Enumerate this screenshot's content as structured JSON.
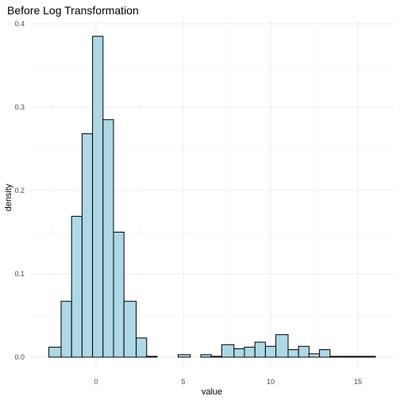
{
  "chart_data": {
    "type": "bar",
    "title": "Before Log Transformation",
    "xlabel": "value",
    "ylabel": "density",
    "xlim": [
      -3.0,
      16.3
    ],
    "ylim": [
      0,
      0.4
    ],
    "x_ticks": [
      0,
      5,
      10,
      15
    ],
    "y_ticks": [
      0.0,
      0.1,
      0.2,
      0.3,
      0.4
    ],
    "y_tick_labels": [
      "0.0",
      "0.1",
      "0.2",
      "0.3",
      "0.4"
    ],
    "grid": true,
    "bar_fill": "#add8e6",
    "bar_outline": "#000000",
    "bins": [
      {
        "x0": -2.7,
        "x1": -2.0,
        "density": 0.012
      },
      {
        "x0": -2.0,
        "x1": -1.4,
        "density": 0.067
      },
      {
        "x0": -1.4,
        "x1": -0.8,
        "density": 0.169
      },
      {
        "x0": -0.8,
        "x1": -0.2,
        "density": 0.268
      },
      {
        "x0": -0.2,
        "x1": 0.4,
        "density": 0.385
      },
      {
        "x0": 0.4,
        "x1": 1.0,
        "density": 0.285
      },
      {
        "x0": 1.0,
        "x1": 1.6,
        "density": 0.15
      },
      {
        "x0": 1.6,
        "x1": 2.3,
        "density": 0.067
      },
      {
        "x0": 2.3,
        "x1": 2.9,
        "density": 0.023
      },
      {
        "x0": 2.9,
        "x1": 3.5,
        "density": 0.001
      },
      {
        "x0": 3.5,
        "x1": 4.1,
        "density": 0.0
      },
      {
        "x0": 4.1,
        "x1": 4.7,
        "density": 0.0
      },
      {
        "x0": 4.7,
        "x1": 5.4,
        "density": 0.003
      },
      {
        "x0": 5.4,
        "x1": 6.0,
        "density": 0.0
      },
      {
        "x0": 6.0,
        "x1": 6.6,
        "density": 0.003
      },
      {
        "x0": 6.6,
        "x1": 7.2,
        "density": 0.001
      },
      {
        "x0": 7.2,
        "x1": 7.9,
        "density": 0.015
      },
      {
        "x0": 7.9,
        "x1": 8.5,
        "density": 0.01
      },
      {
        "x0": 8.5,
        "x1": 9.1,
        "density": 0.012
      },
      {
        "x0": 9.1,
        "x1": 9.7,
        "density": 0.018
      },
      {
        "x0": 9.7,
        "x1": 10.3,
        "density": 0.013
      },
      {
        "x0": 10.3,
        "x1": 11.0,
        "density": 0.027
      },
      {
        "x0": 11.0,
        "x1": 11.6,
        "density": 0.009
      },
      {
        "x0": 11.6,
        "x1": 12.2,
        "density": 0.013
      },
      {
        "x0": 12.2,
        "x1": 12.8,
        "density": 0.004
      },
      {
        "x0": 12.8,
        "x1": 13.4,
        "density": 0.009
      },
      {
        "x0": 13.4,
        "x1": 14.1,
        "density": 0.001
      },
      {
        "x0": 14.1,
        "x1": 14.7,
        "density": 0.001
      },
      {
        "x0": 14.7,
        "x1": 15.3,
        "density": 0.001
      },
      {
        "x0": 15.3,
        "x1": 16.0,
        "density": 0.001
      }
    ]
  }
}
